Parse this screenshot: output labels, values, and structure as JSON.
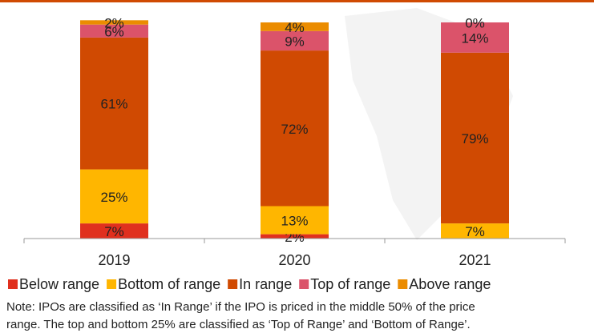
{
  "chart_data": {
    "type": "stacked_bar",
    "categories": [
      "2019",
      "2020",
      "2021"
    ],
    "ylim": [
      0,
      100
    ],
    "series": [
      {
        "name": "Below range",
        "color": "#e0301e",
        "values": [
          7,
          2,
          0
        ],
        "value_labels": [
          "7%",
          "2%",
          null
        ]
      },
      {
        "name": "Bottom of range",
        "color": "#ffb600",
        "values": [
          25,
          13,
          7
        ],
        "value_labels": [
          "25%",
          "13%",
          "7%"
        ]
      },
      {
        "name": "In range",
        "color": "#d04a02",
        "values": [
          61,
          72,
          79
        ],
        "value_labels": [
          "61%",
          "72%",
          "79%"
        ]
      },
      {
        "name": "Top of range",
        "color": "#db536a",
        "values": [
          6,
          9,
          14
        ],
        "value_labels": [
          "6%",
          "9%",
          "14%"
        ]
      },
      {
        "name": "Above range",
        "color": "#eb8c00",
        "values": [
          2,
          4,
          0
        ],
        "value_labels": [
          "2%",
          "4%",
          "0%"
        ]
      }
    ],
    "notes": [
      "Note: IPOs are classified as ‘In Range’ if the IPO is priced in the middle 50% of the price",
      "range. The top and bottom 25% are classified as ‘Top of Range’ and ‘Bottom of Range’."
    ]
  }
}
